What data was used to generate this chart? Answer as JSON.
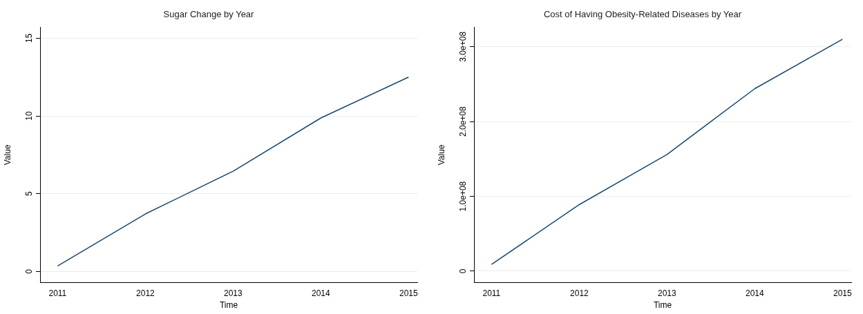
{
  "chart_data": [
    {
      "type": "line",
      "title": "Sugar Change by Year",
      "xlabel": "Time",
      "ylabel": "Value",
      "x": [
        2011,
        2012,
        2013,
        2014,
        2015
      ],
      "values": [
        0.36,
        3.7,
        6.45,
        9.87,
        12.5
      ],
      "color": "#1a476f",
      "xlim": [
        2010.8,
        2015.1
      ],
      "xticks": [
        2011,
        2012,
        2013,
        2014,
        2015
      ],
      "ylim": [
        -0.7,
        15.7
      ],
      "yticks": [
        0,
        5,
        10,
        15
      ],
      "grid": "y",
      "marker": "none"
    },
    {
      "type": "line",
      "title": "Cost of Having Obesity-Related Diseases by Year",
      "xlabel": "Time",
      "ylabel": "Value",
      "x": [
        2011,
        2012,
        2013,
        2014,
        2015
      ],
      "values": [
        9000000,
        89000000,
        156000000,
        244000000,
        310000000
      ],
      "color": "#1a476f",
      "xlim": [
        2010.8,
        2015.1
      ],
      "xticks": [
        2011,
        2012,
        2013,
        2014,
        2015
      ],
      "ylim": [
        -15000000,
        326000000
      ],
      "yticks": [
        0,
        {
          "value": 100000000,
          "label": "1.0e+08"
        },
        {
          "value": 200000000,
          "label": "2.0e+08"
        },
        {
          "value": 300000000,
          "label": "3.0e+08"
        }
      ],
      "grid": "y",
      "marker": "none"
    }
  ]
}
